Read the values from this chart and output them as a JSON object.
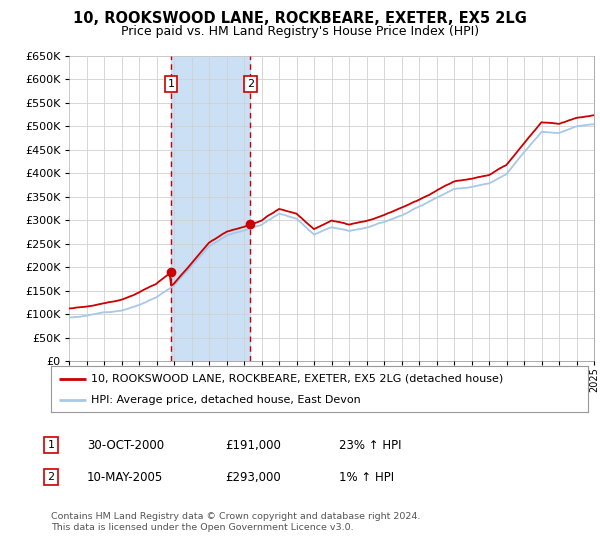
{
  "title": "10, ROOKSWOOD LANE, ROCKBEARE, EXETER, EX5 2LG",
  "subtitle": "Price paid vs. HM Land Registry's House Price Index (HPI)",
  "legend_line1": "10, ROOKSWOOD LANE, ROCKBEARE, EXETER, EX5 2LG (detached house)",
  "legend_line2": "HPI: Average price, detached house, East Devon",
  "transaction1_date": "30-OCT-2000",
  "transaction1_price": "£191,000",
  "transaction1_hpi": "23% ↑ HPI",
  "transaction2_date": "10-MAY-2005",
  "transaction2_price": "£293,000",
  "transaction2_hpi": "1% ↑ HPI",
  "footer": "Contains HM Land Registry data © Crown copyright and database right 2024.\nThis data is licensed under the Open Government Licence v3.0.",
  "hpi_color": "#a8c8e8",
  "price_color": "#cc0000",
  "vline_color": "#cc0000",
  "shade_color": "#cce0f5",
  "grid_color": "#d0d0d0",
  "ylim": [
    0,
    650000
  ],
  "yticks": [
    0,
    50000,
    100000,
    150000,
    200000,
    250000,
    300000,
    350000,
    400000,
    450000,
    500000,
    550000,
    600000,
    650000
  ],
  "transaction1_year": 2000.83,
  "transaction2_year": 2005.37,
  "transaction1_price_val": 191000,
  "transaction2_price_val": 293000,
  "background_fig": "#ffffff"
}
